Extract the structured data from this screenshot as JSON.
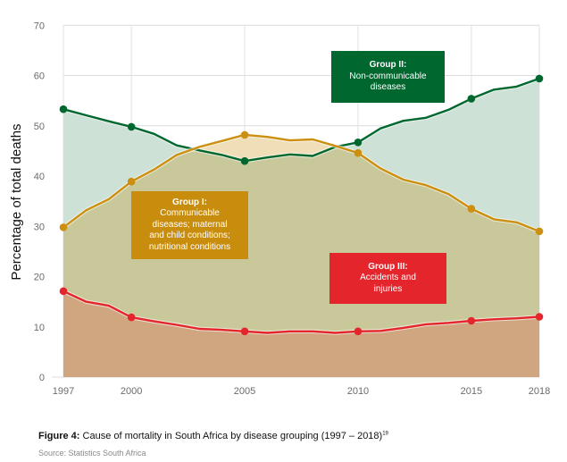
{
  "chart_data": {
    "type": "area",
    "title": "Cause of mortality in South Africa by disease grouping (1997 – 2018)",
    "xlabel": "",
    "ylabel": "Percentage of total deaths",
    "ylim": [
      0,
      70
    ],
    "xlim": [
      1997,
      2018
    ],
    "grid": true,
    "yticks": [
      0,
      10,
      20,
      30,
      40,
      50,
      60,
      70
    ],
    "xticks": [
      1997,
      2000,
      2005,
      2010,
      2015,
      2018
    ],
    "x": [
      1997,
      1998,
      1999,
      2000,
      2001,
      2002,
      2003,
      2004,
      2005,
      2006,
      2007,
      2008,
      2009,
      2010,
      2011,
      2012,
      2013,
      2014,
      2015,
      2016,
      2017,
      2018
    ],
    "marked_years": [
      1997,
      2000,
      2005,
      2010,
      2015,
      2018
    ],
    "series": [
      {
        "name": "Group II: Non-communicable diseases",
        "color": "#00682F",
        "fill": "#CDE1D6",
        "values": [
          53.3,
          52.1,
          50.9,
          49.8,
          48.4,
          46.1,
          45.1,
          44.2,
          43.0,
          43.7,
          44.3,
          44.0,
          45.8,
          46.7,
          49.5,
          51.0,
          51.6,
          53.2,
          55.4,
          57.2,
          57.8,
          59.4
        ]
      },
      {
        "name": "Group I: Communicable diseases; maternal and child conditions; nutritional conditions",
        "color": "#CC8F0F",
        "fill": "#F0DEB8",
        "values": [
          29.8,
          33.2,
          35.4,
          38.9,
          41.3,
          44.2,
          45.8,
          47.0,
          48.2,
          47.8,
          47.1,
          47.3,
          46.0,
          44.6,
          41.5,
          39.3,
          38.2,
          36.4,
          33.5,
          31.4,
          30.8,
          29.0
        ]
      },
      {
        "name": "Group III: Accidents and injuries",
        "color": "#E4262C",
        "fill": "#CFA67F",
        "values": [
          17.1,
          15.0,
          14.2,
          11.9,
          11.1,
          10.4,
          9.6,
          9.4,
          9.1,
          8.8,
          9.1,
          9.1,
          8.8,
          9.1,
          9.2,
          9.8,
          10.5,
          10.8,
          11.2,
          11.5,
          11.7,
          12.0
        ]
      }
    ],
    "annotations": [
      {
        "id": "g1",
        "title": "Group I:",
        "lines": [
          "Communicable",
          "diseases; maternal",
          "and child conditions;",
          "nutritional conditions"
        ],
        "bg": "#C98D0E"
      },
      {
        "id": "g2",
        "title": "Group II:",
        "lines": [
          "Non-communicable",
          "diseases"
        ],
        "bg": "#00682F"
      },
      {
        "id": "g3",
        "title": "Group III:",
        "lines": [
          "Accidents and",
          "injuries"
        ],
        "bg": "#E4262C"
      }
    ],
    "overlap_fill": "#C9C89A"
  },
  "caption": {
    "label": "Figure 4:",
    "text": " Cause of mortality in South Africa by disease grouping (1997 – 2018)",
    "footnote": "19",
    "source": "Source: Statistics South Africa"
  }
}
